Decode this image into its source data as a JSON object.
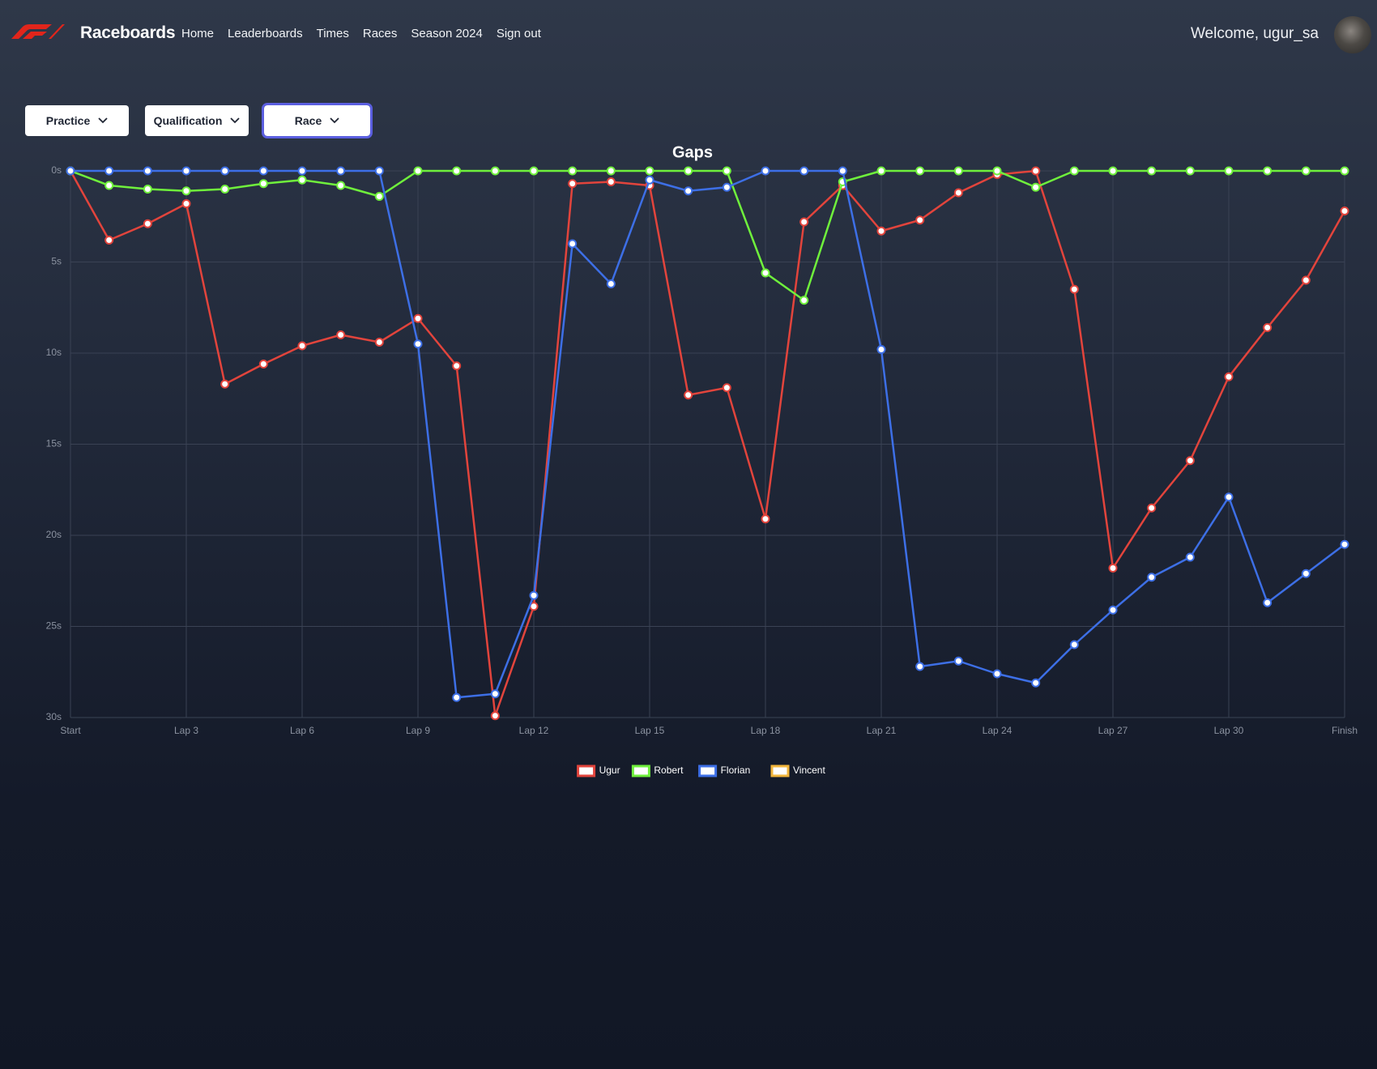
{
  "nav": {
    "brand": "Raceboards",
    "links": [
      "Home",
      "Leaderboards",
      "Times",
      "Races",
      "Season 2024",
      "Sign out"
    ],
    "welcome": "Welcome, ugur_sa"
  },
  "filters": [
    "Practice",
    "Qualification",
    "Race"
  ],
  "chart_data": {
    "type": "line",
    "title": "Gaps",
    "categories": [
      "Start",
      null,
      null,
      "Lap 3",
      null,
      null,
      "Lap 6",
      null,
      null,
      "Lap 9",
      null,
      null,
      "Lap 12",
      null,
      null,
      "Lap 15",
      null,
      null,
      "Lap 18",
      null,
      null,
      "Lap 21",
      null,
      null,
      "Lap 24",
      null,
      null,
      "Lap 27",
      null,
      null,
      "Lap 30",
      null,
      null,
      "Finish"
    ],
    "series": [
      {
        "name": "Ugur",
        "color": "#e2443c",
        "values": [
          0,
          3.8,
          2.9,
          1.8,
          11.7,
          10.6,
          9.6,
          9.0,
          9.4,
          8.1,
          10.7,
          29.9,
          23.9,
          0.7,
          0.6,
          0.8,
          12.3,
          11.9,
          19.1,
          2.8,
          0.8,
          3.3,
          2.7,
          1.2,
          0.2,
          0,
          6.5,
          21.8,
          18.5,
          15.9,
          11.3,
          8.6,
          6.0,
          2.2
        ]
      },
      {
        "name": "Robert",
        "color": "#6ff03c",
        "values": [
          0,
          0.8,
          1.0,
          1.1,
          1.0,
          0.7,
          0.5,
          0.8,
          1.4,
          0,
          0,
          0,
          0,
          0,
          0,
          0,
          0,
          0,
          5.6,
          7.1,
          0.6,
          0,
          0,
          0,
          0,
          0.9,
          0,
          0,
          0,
          0,
          0,
          0,
          0,
          0
        ]
      },
      {
        "name": "Florian",
        "color": "#3d6fe6",
        "values": [
          0,
          0,
          0,
          0,
          0,
          0,
          0,
          0,
          0,
          9.5,
          28.9,
          28.7,
          23.3,
          4.0,
          6.2,
          0.5,
          1.1,
          0.9,
          0,
          0,
          0,
          9.8,
          27.2,
          26.9,
          27.6,
          28.1,
          26.0,
          24.1,
          22.3,
          21.2,
          17.9,
          23.7,
          22.1,
          20.5
        ]
      },
      {
        "name": "Vincent",
        "color": "#f2b63c",
        "values": [
          null,
          null,
          null,
          null,
          null,
          null,
          null,
          null,
          null,
          null,
          null,
          null,
          null,
          null,
          null,
          null,
          null,
          null,
          null,
          null,
          null,
          null,
          null,
          null,
          null,
          null,
          null,
          null,
          null,
          null,
          null,
          null,
          null,
          null
        ]
      }
    ],
    "ylim": [
      0,
      30
    ],
    "y_inverted": true,
    "yticks": [
      {
        "value": 0,
        "label": "0s"
      },
      {
        "value": 5,
        "label": "5s"
      },
      {
        "value": 10,
        "label": "10s"
      },
      {
        "value": 15,
        "label": "15s"
      },
      {
        "value": 20,
        "label": "20s"
      },
      {
        "value": 25,
        "label": "25s"
      },
      {
        "value": 30,
        "label": "30s"
      }
    ],
    "grid": true,
    "legend": "bottom"
  }
}
